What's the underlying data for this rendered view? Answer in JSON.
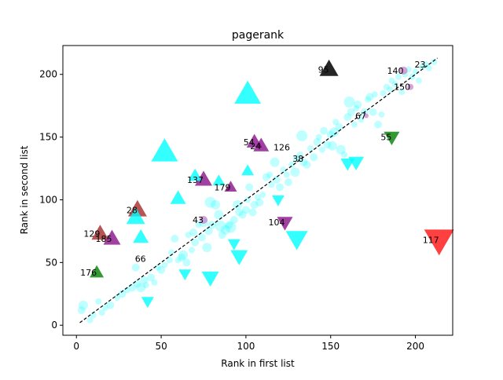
{
  "chart_data": {
    "type": "scatter",
    "title": "pagerank",
    "xlabel": "Rank in first list",
    "ylabel": "Rank in second list",
    "xlim": [
      -8,
      222
    ],
    "ylim": [
      -8,
      223
    ],
    "xticks": [
      0,
      50,
      100,
      150,
      200
    ],
    "yticks": [
      0,
      50,
      100,
      150,
      200
    ],
    "diagonal": {
      "from": [
        2,
        2
      ],
      "to": [
        213,
        213
      ],
      "style": "dashed",
      "color": "#000000"
    },
    "colors": {
      "cyan": "#00ffff",
      "purple": "#800080",
      "green": "#008000",
      "red": "#ff0000",
      "brown": "#a52a2a",
      "black": "#000000",
      "orchid": "#c471c4"
    },
    "circles": [
      [
        3,
        12,
        5
      ],
      [
        4,
        16,
        6
      ],
      [
        8,
        4,
        4
      ],
      [
        10,
        8,
        4
      ],
      [
        13,
        19,
        4
      ],
      [
        15,
        10,
        4
      ],
      [
        17,
        14,
        4
      ],
      [
        20,
        16,
        5
      ],
      [
        24,
        22,
        4
      ],
      [
        27,
        25,
        5
      ],
      [
        30,
        28,
        4
      ],
      [
        33,
        30,
        5
      ],
      [
        35,
        46,
        5
      ],
      [
        36,
        33,
        5
      ],
      [
        38,
        30,
        6
      ],
      [
        40,
        36,
        5
      ],
      [
        41,
        32,
        4
      ],
      [
        44,
        38,
        5
      ],
      [
        46,
        34,
        4
      ],
      [
        48,
        46,
        4
      ],
      [
        50,
        44,
        5
      ],
      [
        52,
        48,
        4
      ],
      [
        55,
        52,
        4
      ],
      [
        56,
        58,
        4
      ],
      [
        58,
        69,
        5
      ],
      [
        60,
        52,
        4
      ],
      [
        62,
        54,
        5
      ],
      [
        63,
        56,
        6
      ],
      [
        65,
        50,
        5
      ],
      [
        66,
        72,
        4
      ],
      [
        68,
        60,
        4
      ],
      [
        69,
        74,
        5
      ],
      [
        70,
        66,
        5
      ],
      [
        72,
        80,
        4
      ],
      [
        74,
        70,
        5
      ],
      [
        75,
        82,
        6
      ],
      [
        77,
        62,
        6
      ],
      [
        78,
        75,
        5
      ],
      [
        79,
        98,
        7
      ],
      [
        80,
        80,
        5
      ],
      [
        82,
        96,
        6
      ],
      [
        84,
        88,
        6
      ],
      [
        85,
        79,
        7
      ],
      [
        86,
        72,
        5
      ],
      [
        88,
        76,
        6
      ],
      [
        90,
        80,
        5
      ],
      [
        91,
        78,
        7
      ],
      [
        93,
        84,
        5
      ],
      [
        95,
        96,
        6
      ],
      [
        96,
        90,
        5
      ],
      [
        98,
        88,
        5
      ],
      [
        100,
        92,
        5
      ],
      [
        101,
        100,
        4
      ],
      [
        102,
        110,
        5
      ],
      [
        104,
        90,
        5
      ],
      [
        105,
        96,
        5
      ],
      [
        107,
        102,
        4
      ],
      [
        108,
        98,
        5
      ],
      [
        110,
        104,
        4
      ],
      [
        112,
        118,
        5
      ],
      [
        114,
        120,
        4
      ],
      [
        115,
        112,
        4
      ],
      [
        117,
        130,
        6
      ],
      [
        118,
        116,
        5
      ],
      [
        120,
        110,
        5
      ],
      [
        122,
        124,
        4
      ],
      [
        124,
        120,
        4
      ],
      [
        125,
        114,
        5
      ],
      [
        127,
        128,
        4
      ],
      [
        129,
        122,
        6
      ],
      [
        130,
        133,
        5
      ],
      [
        132,
        136,
        4
      ],
      [
        133,
        151,
        7
      ],
      [
        134,
        130,
        5
      ],
      [
        136,
        128,
        5
      ],
      [
        138,
        141,
        4
      ],
      [
        140,
        134,
        5
      ],
      [
        142,
        146,
        5
      ],
      [
        143,
        150,
        4
      ],
      [
        145,
        140,
        4
      ],
      [
        146,
        155,
        5
      ],
      [
        148,
        144,
        5
      ],
      [
        150,
        152,
        5
      ],
      [
        151,
        143,
        6
      ],
      [
        152,
        154,
        6
      ],
      [
        153,
        162,
        4
      ],
      [
        155,
        158,
        5
      ],
      [
        156,
        140,
        6
      ],
      [
        158,
        136,
        4
      ],
      [
        160,
        166,
        5
      ],
      [
        161,
        178,
        7
      ],
      [
        162,
        170,
        5
      ],
      [
        164,
        160,
        4
      ],
      [
        165,
        173,
        4
      ],
      [
        166,
        176,
        5
      ],
      [
        168,
        164,
        4
      ],
      [
        170,
        170,
        5
      ],
      [
        172,
        180,
        4
      ],
      [
        173,
        182,
        5
      ],
      [
        175,
        170,
        5
      ],
      [
        176,
        184,
        4
      ],
      [
        178,
        160,
        5
      ],
      [
        180,
        168,
        4
      ],
      [
        181,
        185,
        4
      ],
      [
        183,
        190,
        4
      ],
      [
        185,
        188,
        4
      ],
      [
        186,
        195,
        4
      ],
      [
        188,
        192,
        4
      ],
      [
        190,
        198,
        4
      ],
      [
        192,
        186,
        4
      ],
      [
        194,
        200,
        4
      ],
      [
        196,
        204,
        4
      ],
      [
        198,
        198,
        4
      ],
      [
        200,
        202,
        4
      ],
      [
        202,
        195,
        4
      ],
      [
        204,
        206,
        4
      ],
      [
        206,
        208,
        4
      ],
      [
        208,
        205,
        4
      ],
      [
        211,
        210,
        4
      ]
    ],
    "highlight_circles": [
      {
        "x": 75,
        "y": 84,
        "r": 5,
        "label": "43"
      },
      {
        "x": 197,
        "y": 190,
        "r": 4,
        "label": "150"
      },
      {
        "x": 193,
        "y": 203,
        "r": 5,
        "label": "140"
      },
      {
        "x": 171,
        "y": 167,
        "r": 3,
        "label": "67"
      }
    ],
    "markers": [
      {
        "x": 214,
        "y": 68,
        "shape": "down",
        "size": 38,
        "color": "red",
        "alpha": 0.75,
        "label": "117"
      },
      {
        "x": 149,
        "y": 204,
        "shape": "up",
        "size": 24,
        "color": "black",
        "alpha": 0.85,
        "label": "95"
      },
      {
        "x": 186,
        "y": 150,
        "shape": "down",
        "size": 20,
        "color": "green",
        "alpha": 0.8,
        "label": "55"
      },
      {
        "x": 12,
        "y": 42,
        "shape": "up",
        "size": 18,
        "color": "green",
        "alpha": 0.8,
        "label": "176"
      },
      {
        "x": 14,
        "y": 73,
        "shape": "up",
        "size": 22,
        "color": "brown",
        "alpha": 0.8,
        "label": "129"
      },
      {
        "x": 36,
        "y": 92,
        "shape": "up",
        "size": 24,
        "color": "brown",
        "alpha": 0.8,
        "label": "28"
      },
      {
        "x": 21,
        "y": 69,
        "shape": "up",
        "size": 22,
        "color": "purple",
        "alpha": 0.75,
        "label": "185"
      },
      {
        "x": 75,
        "y": 116,
        "shape": "up",
        "size": 22,
        "color": "purple",
        "alpha": 0.75,
        "label": "137"
      },
      {
        "x": 91,
        "y": 110,
        "shape": "up",
        "size": 16,
        "color": "purple",
        "alpha": 0.75,
        "label": "179"
      },
      {
        "x": 105,
        "y": 146,
        "shape": "up",
        "size": 20,
        "color": "purple",
        "alpha": 0.75,
        "label": "54"
      },
      {
        "x": 109,
        "y": 143,
        "shape": "up",
        "size": 20,
        "color": "purple",
        "alpha": 0.75,
        "label": "24"
      },
      {
        "x": 123,
        "y": 82,
        "shape": "down",
        "size": 20,
        "color": "purple",
        "alpha": 0.75,
        "label": "104"
      },
      {
        "x": 101,
        "y": 184,
        "shape": "up",
        "size": 34,
        "color": "cyan",
        "alpha": 0.8,
        "label": ""
      },
      {
        "x": 52,
        "y": 138,
        "shape": "up",
        "size": 34,
        "color": "cyan",
        "alpha": 0.8,
        "label": ""
      },
      {
        "x": 35,
        "y": 86,
        "shape": "up",
        "size": 24,
        "color": "cyan",
        "alpha": 0.8,
        "label": ""
      },
      {
        "x": 38,
        "y": 70,
        "shape": "up",
        "size": 20,
        "color": "cyan",
        "alpha": 0.8,
        "label": ""
      },
      {
        "x": 60,
        "y": 101,
        "shape": "up",
        "size": 20,
        "color": "cyan",
        "alpha": 0.8,
        "label": ""
      },
      {
        "x": 70,
        "y": 119,
        "shape": "up",
        "size": 18,
        "color": "cyan",
        "alpha": 0.8,
        "label": ""
      },
      {
        "x": 84,
        "y": 115,
        "shape": "up",
        "size": 16,
        "color": "cyan",
        "alpha": 0.8,
        "label": ""
      },
      {
        "x": 101,
        "y": 123,
        "shape": "up",
        "size": 16,
        "color": "cyan",
        "alpha": 0.8,
        "label": ""
      },
      {
        "x": 130,
        "y": 69,
        "shape": "down",
        "size": 28,
        "color": "cyan",
        "alpha": 0.8,
        "label": ""
      },
      {
        "x": 96,
        "y": 55,
        "shape": "down",
        "size": 22,
        "color": "cyan",
        "alpha": 0.8,
        "label": ""
      },
      {
        "x": 93,
        "y": 65,
        "shape": "down",
        "size": 16,
        "color": "cyan",
        "alpha": 0.8,
        "label": ""
      },
      {
        "x": 79,
        "y": 38,
        "shape": "down",
        "size": 22,
        "color": "cyan",
        "alpha": 0.8,
        "label": ""
      },
      {
        "x": 64,
        "y": 41,
        "shape": "down",
        "size": 16,
        "color": "cyan",
        "alpha": 0.8,
        "label": ""
      },
      {
        "x": 42,
        "y": 19,
        "shape": "down",
        "size": 16,
        "color": "cyan",
        "alpha": 0.8,
        "label": ""
      },
      {
        "x": 160,
        "y": 129,
        "shape": "down",
        "size": 18,
        "color": "cyan",
        "alpha": 0.8,
        "label": ""
      },
      {
        "x": 165,
        "y": 130,
        "shape": "down",
        "size": 20,
        "color": "cyan",
        "alpha": 0.8,
        "label": ""
      },
      {
        "x": 119,
        "y": 100,
        "shape": "down",
        "size": 16,
        "color": "cyan",
        "alpha": 0.8,
        "label": ""
      }
    ],
    "annotations": [
      {
        "text": "126",
        "x": 126,
        "y": 142
      },
      {
        "text": "38",
        "x": 134,
        "y": 133
      },
      {
        "text": "66",
        "x": 41,
        "y": 53
      },
      {
        "text": "23",
        "x": 206,
        "y": 208
      }
    ]
  }
}
